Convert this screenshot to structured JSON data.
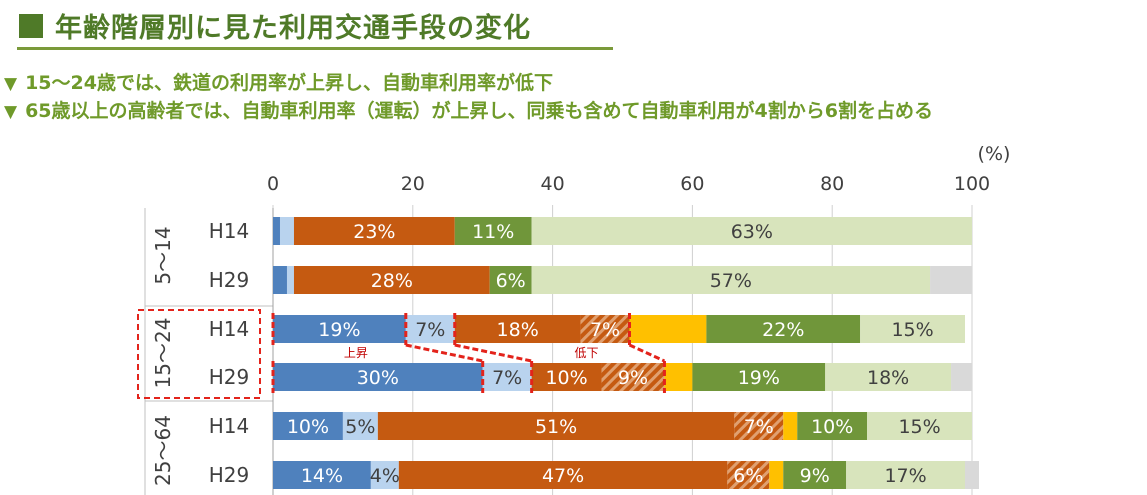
{
  "title": "年齢階層別に見た利用交通手段の変化",
  "bullets": [
    "15～24歳では、鉄道の利用率が上昇し、自動車利用率が低下",
    "65歳以上の高齢者では、自動車利用率（運転）が上昇し、同乗も含めて自動車利用が4割から6割を占める"
  ],
  "bullet_marker": "▼",
  "chart_data": {
    "type": "bar",
    "orientation": "horizontal-stacked",
    "unit_label": "(%)",
    "xlim": [
      0,
      100
    ],
    "xticks": [
      0,
      20,
      40,
      60,
      80,
      100
    ],
    "groups": [
      {
        "label": "5～14",
        "rows": [
          {
            "label": "H14",
            "values": [
              1,
              2,
              23,
              0,
              0,
              0,
              11,
              63,
              0
            ],
            "labels": [
              "",
              "",
              "23%",
              "",
              "",
              "",
              "11%",
              "63%",
              ""
            ]
          },
          {
            "label": "H29",
            "values": [
              2,
              1,
              28,
              0,
              0,
              0,
              6,
              57,
              6
            ],
            "labels": [
              "",
              "",
              "28%",
              "",
              "",
              "",
              "6%",
              "57%",
              ""
            ]
          }
        ]
      },
      {
        "label": "15～24",
        "rows": [
          {
            "label": "H14",
            "values": [
              19,
              7,
              18,
              7,
              0,
              11,
              22,
              15,
              0
            ],
            "labels": [
              "19%",
              "7%",
              "18%",
              "7%",
              "",
              "",
              "22%",
              "15%",
              ""
            ]
          },
          {
            "label": "H29",
            "values": [
              30,
              7,
              10,
              9,
              0,
              4,
              19,
              18,
              3
            ],
            "labels": [
              "30%",
              "7%",
              "10%",
              "9%",
              "",
              "",
              "19%",
              "18%",
              ""
            ]
          }
        ]
      },
      {
        "label": "25～64",
        "rows": [
          {
            "label": "H14",
            "values": [
              10,
              5,
              51,
              7,
              0,
              2,
              10,
              15,
              0
            ],
            "labels": [
              "10%",
              "5%",
              "51%",
              "7%",
              "",
              "",
              "10%",
              "15%",
              ""
            ]
          },
          {
            "label": "H29",
            "values": [
              14,
              4,
              47,
              6,
              0,
              2,
              9,
              17,
              2
            ],
            "labels": [
              "14%",
              "4%",
              "47%",
              "6%",
              "",
              "",
              "9%",
              "17%",
              ""
            ]
          }
        ]
      }
    ],
    "segment_styles": [
      {
        "color": "#4f81bd",
        "hatch": false,
        "text_color": "#ffffff"
      },
      {
        "color": "#b9d3ee",
        "hatch": false,
        "text_color": "#404040"
      },
      {
        "color": "#c55a11",
        "hatch": false,
        "text_color": "#ffffff"
      },
      {
        "color": "#c55a11",
        "hatch": true,
        "text_color": "#ffffff"
      },
      {
        "color": "#ffc000",
        "hatch": false,
        "text_color": "#404040"
      },
      {
        "color": "#ffc000",
        "hatch": false,
        "text_color": "#404040"
      },
      {
        "color": "#70963a",
        "hatch": false,
        "text_color": "#ffffff"
      },
      {
        "color": "#d8e4bc",
        "hatch": false,
        "text_color": "#404040"
      },
      {
        "color": "#d9d9d9",
        "hatch": false,
        "text_color": "#404040"
      }
    ],
    "annotations": [
      {
        "text": "上昇",
        "row": [
          1,
          0
        ],
        "at": 11
      },
      {
        "text": "低下",
        "row": [
          1,
          0
        ],
        "at": 44
      }
    ],
    "highlight_group": 1
  }
}
